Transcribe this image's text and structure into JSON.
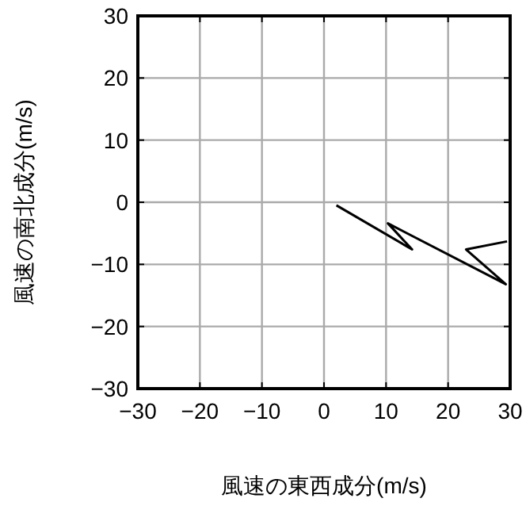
{
  "chart_data": {
    "type": "line",
    "xlabel": "風速の東西成分(m/s)",
    "ylabel": "風速の南北成分(m/s)",
    "x": [
      2.0,
      14.2,
      10.3,
      29.3,
      22.9,
      29.5
    ],
    "series": [
      {
        "color": "#000000",
        "values": [
          -0.5,
          -7.6,
          -3.4,
          -13.2,
          -7.6,
          -6.3
        ]
      }
    ],
    "xlim": [
      -30,
      30
    ],
    "ylim": [
      -30,
      30
    ],
    "xticks": [
      -30,
      -20,
      -10,
      0,
      10,
      20,
      30
    ],
    "yticks": [
      -30,
      -20,
      -10,
      0,
      10,
      20,
      30
    ],
    "grid": true,
    "marker": "none",
    "line_style": "solid"
  }
}
